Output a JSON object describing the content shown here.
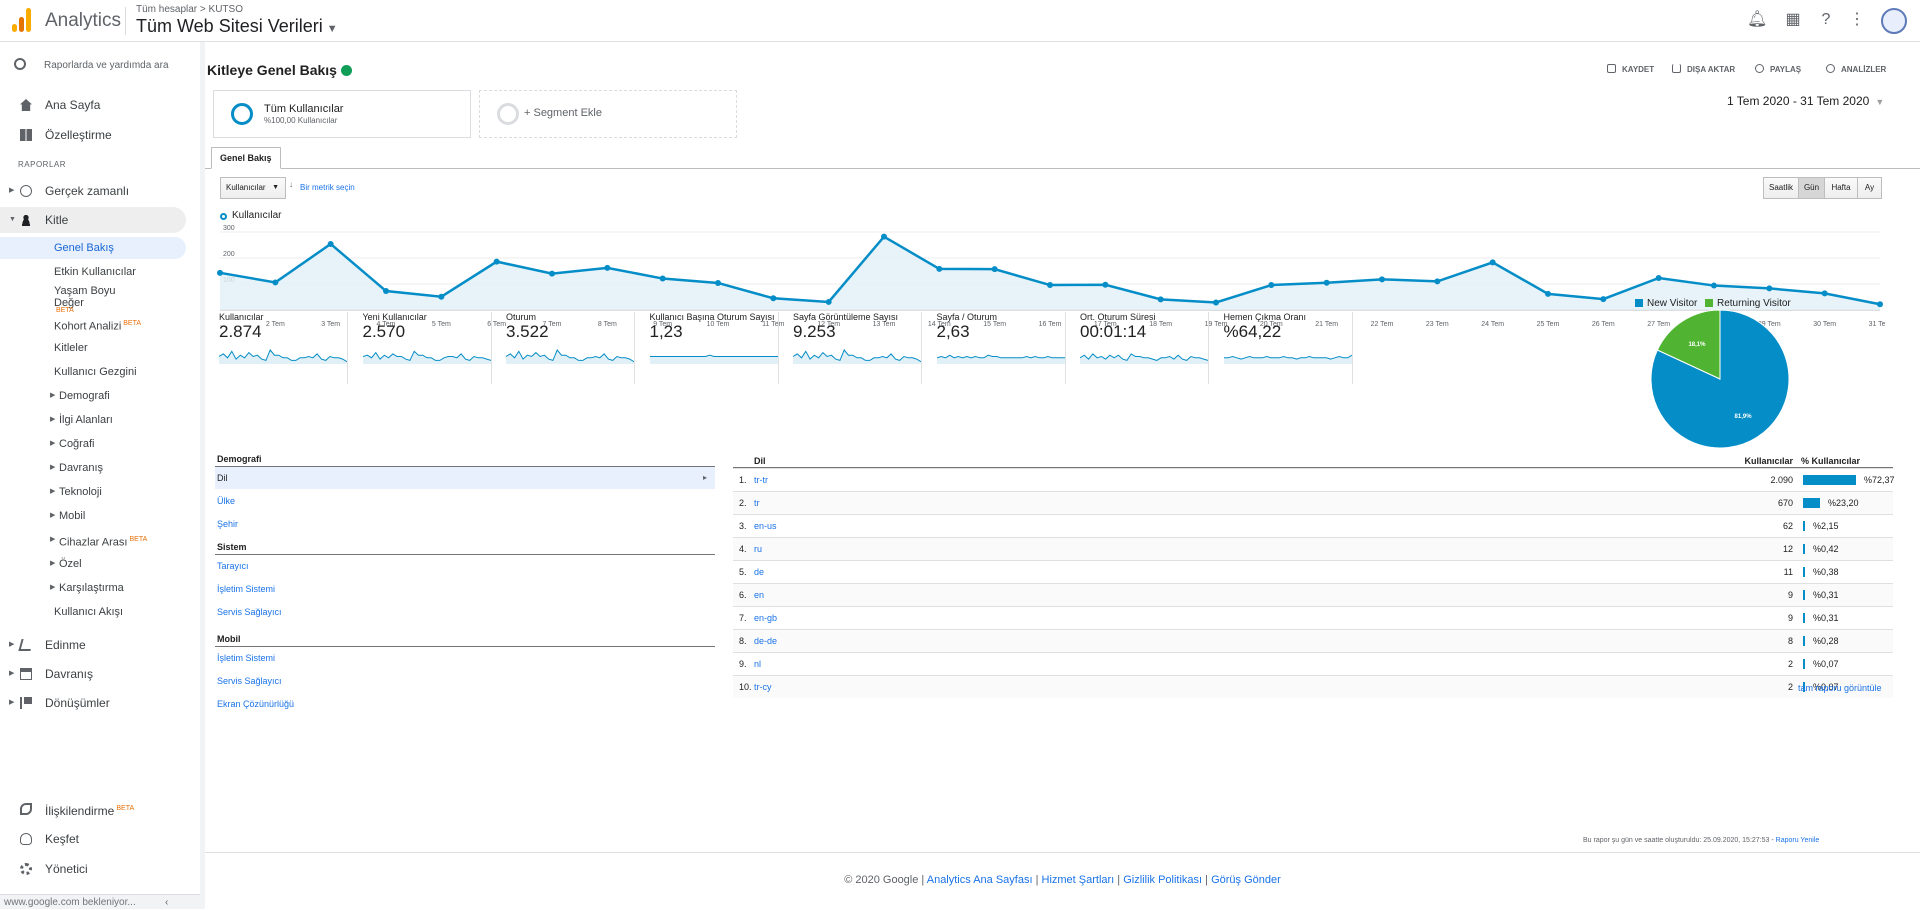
{
  "app": {
    "brand": "Analytics",
    "breadcrumb": "Tüm hesaplar > KUTSO",
    "account": "Tüm Web Sitesi Verileri"
  },
  "sidebar": {
    "search_placeholder": "Raporlarda ve yardımda ara",
    "home": "Ana Sayfa",
    "customize": "Özelleştirme",
    "reports_label": "RAPORLAR",
    "realtime": "Gerçek zamanlı",
    "audience": "Kitle",
    "audience_items": [
      "Genel Bakış",
      "Etkin Kullanıcılar",
      "Yaşam Boyu Değer",
      "Kohort Analizi",
      "Kitleler",
      "Kullanıcı Gezgini",
      "Demografi",
      "İlgi Alanları",
      "Coğrafi",
      "Davranış",
      "Teknoloji",
      "Mobil",
      "Cihazlar Arası",
      "Özel",
      "Karşılaştırma",
      "Kullanıcı Akışı"
    ],
    "beta": "BETA",
    "acquisition": "Edinme",
    "behavior": "Davranış",
    "conversions": "Dönüşümler",
    "attribution": "İlişkilendirme",
    "discover": "Keşfet",
    "admin": "Yönetici",
    "status_bar": "www.google.com bekleniyor..."
  },
  "toolbar": {
    "title": "Kitleye Genel Bakış",
    "save": "KAYDET",
    "export": "DIŞA AKTAR",
    "share": "PAYLAŞ",
    "insights": "ANALİZLER"
  },
  "segments": {
    "all_users": "Tüm Kullanıcılar",
    "all_users_pct": "%100,00 Kullanıcılar",
    "add": "+ Segment Ekle"
  },
  "date_range": "1 Tem 2020 - 31 Tem 2020",
  "tab": "Genel Bakış",
  "metric_select": "Kullanıcılar",
  "vs": "↓",
  "pick_metric": "Bir metrik seçin",
  "periods": [
    "Saatlik",
    "Gün",
    "Hafta",
    "Ay"
  ],
  "chart_data": {
    "type": "line",
    "series": [
      {
        "name": "Kullanıcılar",
        "values": [
          143,
          106,
          254,
          73,
          51,
          186,
          140,
          162,
          121,
          104,
          45,
          31,
          282,
          158,
          157,
          96,
          97,
          41,
          29,
          96,
          105,
          118,
          110,
          183,
          62,
          42,
          123,
          94,
          83,
          64,
          22
        ]
      }
    ],
    "x": [
      "1 Tem",
      "2 Tem",
      "3 Tem",
      "4 Tem",
      "5 Tem",
      "6 Tem",
      "7 Tem",
      "8 Tem",
      "9 Tem",
      "10 Tem",
      "11 Tem",
      "12 Tem",
      "13 Tem",
      "14 Tem",
      "15 Tem",
      "16 Tem",
      "17 Tem",
      "18 Tem",
      "19 Tem",
      "20 Tem",
      "21 Tem",
      "22 Tem",
      "23 Tem",
      "24 Tem",
      "25 Tem",
      "26 Tem",
      "27 Tem",
      "28 Tem",
      "29 Tem",
      "30 Tem",
      "31 Tem"
    ],
    "x_tick_labels": [
      "...",
      "2 Tem",
      "3 Tem",
      "4 Tem",
      "5 Tem",
      "6 Tem",
      "7 Tem",
      "8 Tem",
      "9 Tem",
      "10 Tem",
      "11 Tem",
      "12 Tem",
      "13 Tem",
      "14 Tem",
      "15 Tem",
      "16 Tem",
      "17 Tem",
      "18 Tem",
      "19 Tem",
      "20 Tem",
      "21 Tem",
      "22 Tem",
      "23 Tem",
      "24 Tem",
      "25 Tem",
      "26 Tem",
      "27 Tem",
      "28 Tem",
      "29 Tem",
      "30 Tem",
      "31 Tem"
    ],
    "y_ticks": [
      "300",
      "200",
      "100"
    ],
    "ylim": [
      0,
      300
    ],
    "color": "#058dc7"
  },
  "kpis": [
    {
      "name": "Kullanıcılar",
      "value": "2.874"
    },
    {
      "name": "Yeni Kullanıcılar",
      "value": "2.570"
    },
    {
      "name": "Oturum",
      "value": "3.522"
    },
    {
      "name": "Kullanıcı Başına Oturum Sayısı",
      "value": "1,23"
    },
    {
      "name": "Sayfa Görüntüleme Sayısı",
      "value": "9.253"
    },
    {
      "name": "Sayfa / Oturum",
      "value": "2,63"
    },
    {
      "name": "Ort. Oturum Süresi",
      "value": "00:01:14"
    },
    {
      "name": "Hemen Çıkma Oranı",
      "value": "%64,22"
    }
  ],
  "pie": {
    "type": "pie",
    "slices": [
      {
        "name": "New Visitor",
        "value": 81.9,
        "label": "81,9%",
        "color": "#058dc7"
      },
      {
        "name": "Returning Visitor",
        "value": 18.1,
        "label": "18,1%",
        "color": "#50b432"
      }
    ]
  },
  "left_table": {
    "demographics": "Demografi",
    "demo_rows": [
      "Dil",
      "Ülke",
      "Şehir"
    ],
    "system": "Sistem",
    "system_rows": [
      "Tarayıcı",
      "İşletim Sistemi",
      "Servis Sağlayıcı"
    ],
    "mobile": "Mobil",
    "mobile_rows": [
      "İşletim Sistemi",
      "Servis Sağlayıcı",
      "Ekran Çözünürlüğü"
    ]
  },
  "right_table": {
    "col_lang": "Dil",
    "col_users": "Kullanıcılar",
    "col_pct": "% Kullanıcılar",
    "rows": [
      {
        "num": "1.",
        "lang": "tr-tr",
        "users": "2.090",
        "pct": "%72,37",
        "fraction": 0.7237
      },
      {
        "num": "2.",
        "lang": "tr",
        "users": "670",
        "pct": "%23,20",
        "fraction": 0.232
      },
      {
        "num": "3.",
        "lang": "en-us",
        "users": "62",
        "pct": "%2,15",
        "fraction": 0.0215
      },
      {
        "num": "4.",
        "lang": "ru",
        "users": "12",
        "pct": "%0,42",
        "fraction": 0.0042
      },
      {
        "num": "5.",
        "lang": "de",
        "users": "11",
        "pct": "%0,38",
        "fraction": 0.0038
      },
      {
        "num": "6.",
        "lang": "en",
        "users": "9",
        "pct": "%0,31",
        "fraction": 0.0031
      },
      {
        "num": "7.",
        "lang": "en-gb",
        "users": "9",
        "pct": "%0,31",
        "fraction": 0.0031
      },
      {
        "num": "8.",
        "lang": "de-de",
        "users": "8",
        "pct": "%0,28",
        "fraction": 0.0028
      },
      {
        "num": "9.",
        "lang": "nl",
        "users": "2",
        "pct": "%0,07",
        "fraction": 0.0007
      },
      {
        "num": "10.",
        "lang": "tr-cy",
        "users": "2",
        "pct": "%0,07",
        "fraction": 0.0007
      }
    ],
    "full_report": "tam raporu görüntüle"
  },
  "report_note": "Bu rapor şu gün ve saatte oluşturuldu: 25.09.2020, 15:27:53 -",
  "report_refresh": "Raporu Yenile",
  "footer": {
    "copyright": "© 2020 Google |",
    "links": [
      "Analytics Ana Sayfası",
      "Hizmet Şartları",
      "Gizlilik Politikası",
      "Görüş Gönder"
    ]
  },
  "colors": {
    "accent": "#058dc7",
    "returning": "#50b432",
    "link": "#1a73e8"
  }
}
